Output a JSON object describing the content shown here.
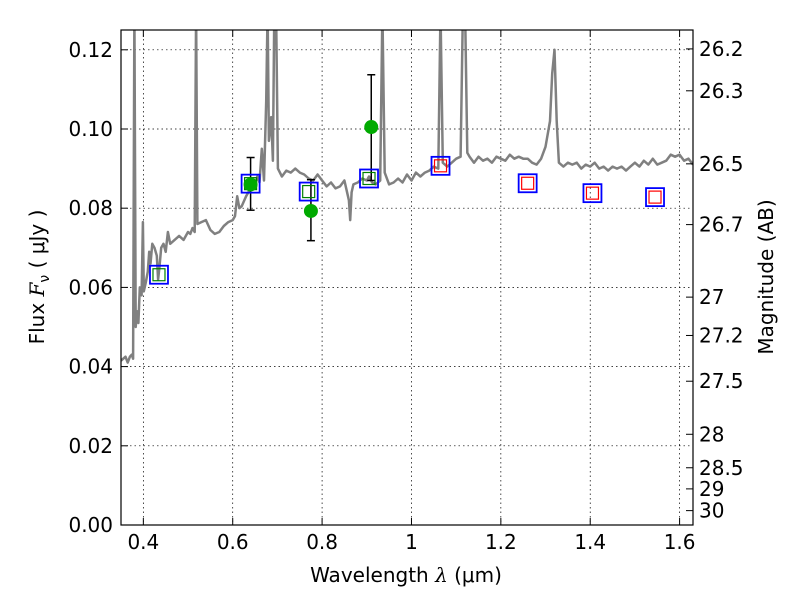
{
  "chart_data": {
    "type": "line",
    "xlabel": {
      "prefix": "Wavelength  ",
      "symbol": "λ",
      "units": " (μm)"
    },
    "ylabel": {
      "prefix": "Flux  ",
      "symbol": "F",
      "subscript": "ν",
      "units": "  ( μJy )"
    },
    "ylabel_right": "Magnitude (AB)",
    "xlim": [
      0.35,
      1.63
    ],
    "ylim": [
      0.0,
      0.125
    ],
    "grid": true,
    "x_ticks": [
      {
        "value": 0.4,
        "label": "0.4"
      },
      {
        "value": 0.6,
        "label": "0.6"
      },
      {
        "value": 0.8,
        "label": "0.8"
      },
      {
        "value": 1.0,
        "label": "1"
      },
      {
        "value": 1.2,
        "label": "1.2"
      },
      {
        "value": 1.4,
        "label": "1.4"
      },
      {
        "value": 1.6,
        "label": "1.6"
      }
    ],
    "y_ticks": [
      {
        "value": 0.0,
        "label": "0.00"
      },
      {
        "value": 0.02,
        "label": "0.02"
      },
      {
        "value": 0.04,
        "label": "0.04"
      },
      {
        "value": 0.06,
        "label": "0.06"
      },
      {
        "value": 0.08,
        "label": "0.08"
      },
      {
        "value": 0.1,
        "label": "0.10"
      },
      {
        "value": 0.12,
        "label": "0.12"
      }
    ],
    "right_ticks": [
      {
        "mag": 26.2,
        "label": "26.2"
      },
      {
        "mag": 26.3,
        "label": "26.3"
      },
      {
        "mag": 26.5,
        "label": "26.5"
      },
      {
        "mag": 26.7,
        "label": "26.7"
      },
      {
        "mag": 27.0,
        "label": "27"
      },
      {
        "mag": 27.2,
        "label": "27.2"
      },
      {
        "mag": 27.5,
        "label": "27.5"
      },
      {
        "mag": 28.0,
        "label": "28"
      },
      {
        "mag": 28.5,
        "label": "28.5"
      },
      {
        "mag": 29.0,
        "label": "29"
      },
      {
        "mag": 30.0,
        "label": "30"
      }
    ],
    "series": [
      {
        "kind": "model-spectrum",
        "color": "#808080",
        "points": [
          [
            0.35,
            0.0415
          ],
          [
            0.36,
            0.0425
          ],
          [
            0.365,
            0.041
          ],
          [
            0.37,
            0.0425
          ],
          [
            0.374,
            0.043
          ],
          [
            0.377,
            0.042
          ],
          [
            0.38,
            0.13
          ],
          [
            0.383,
            0.05
          ],
          [
            0.386,
            0.054
          ],
          [
            0.389,
            0.051
          ],
          [
            0.392,
            0.06
          ],
          [
            0.396,
            0.058
          ],
          [
            0.399,
            0.0765
          ],
          [
            0.401,
            0.059
          ],
          [
            0.405,
            0.061
          ],
          [
            0.41,
            0.064
          ],
          [
            0.413,
            0.069
          ],
          [
            0.416,
            0.066
          ],
          [
            0.42,
            0.071
          ],
          [
            0.425,
            0.07
          ],
          [
            0.43,
            0.068
          ],
          [
            0.433,
            0.062
          ],
          [
            0.436,
            0.065
          ],
          [
            0.44,
            0.07
          ],
          [
            0.445,
            0.071
          ],
          [
            0.45,
            0.069
          ],
          [
            0.455,
            0.074
          ],
          [
            0.46,
            0.071
          ],
          [
            0.47,
            0.072
          ],
          [
            0.48,
            0.073
          ],
          [
            0.49,
            0.072
          ],
          [
            0.5,
            0.074
          ],
          [
            0.505,
            0.0735
          ],
          [
            0.51,
            0.075
          ],
          [
            0.515,
            0.074
          ],
          [
            0.518,
            0.13
          ],
          [
            0.521,
            0.076
          ],
          [
            0.53,
            0.0765
          ],
          [
            0.54,
            0.077
          ],
          [
            0.55,
            0.0745
          ],
          [
            0.56,
            0.0735
          ],
          [
            0.57,
            0.074
          ],
          [
            0.58,
            0.0755
          ],
          [
            0.59,
            0.0765
          ],
          [
            0.6,
            0.077
          ],
          [
            0.605,
            0.078
          ],
          [
            0.61,
            0.083
          ],
          [
            0.615,
            0.08
          ],
          [
            0.62,
            0.0805
          ],
          [
            0.63,
            0.083
          ],
          [
            0.64,
            0.085
          ],
          [
            0.645,
            0.087
          ],
          [
            0.65,
            0.086
          ],
          [
            0.655,
            0.088
          ],
          [
            0.66,
            0.0865
          ],
          [
            0.665,
            0.095
          ],
          [
            0.67,
            0.087
          ],
          [
            0.675,
            0.107
          ],
          [
            0.678,
            0.13
          ],
          [
            0.681,
            0.097
          ],
          [
            0.686,
            0.103
          ],
          [
            0.69,
            0.092
          ],
          [
            0.693,
            0.13
          ],
          [
            0.697,
            0.13
          ],
          [
            0.701,
            0.09
          ],
          [
            0.71,
            0.088
          ],
          [
            0.72,
            0.0895
          ],
          [
            0.73,
            0.089
          ],
          [
            0.74,
            0.09
          ],
          [
            0.75,
            0.089
          ],
          [
            0.76,
            0.0885
          ],
          [
            0.77,
            0.0875
          ],
          [
            0.78,
            0.087
          ],
          [
            0.79,
            0.0885
          ],
          [
            0.8,
            0.087
          ],
          [
            0.81,
            0.0855
          ],
          [
            0.82,
            0.0865
          ],
          [
            0.83,
            0.085
          ],
          [
            0.84,
            0.0855
          ],
          [
            0.85,
            0.087
          ],
          [
            0.86,
            0.082
          ],
          [
            0.863,
            0.077
          ],
          [
            0.866,
            0.084
          ],
          [
            0.87,
            0.086
          ],
          [
            0.88,
            0.0865
          ],
          [
            0.89,
            0.0875
          ],
          [
            0.9,
            0.087
          ],
          [
            0.905,
            0.088
          ],
          [
            0.912,
            0.0865
          ],
          [
            0.92,
            0.086
          ],
          [
            0.93,
            0.087
          ],
          [
            0.935,
            0.13
          ],
          [
            0.94,
            0.089
          ],
          [
            0.95,
            0.086
          ],
          [
            0.96,
            0.0865
          ],
          [
            0.97,
            0.0875
          ],
          [
            0.98,
            0.0865
          ],
          [
            0.99,
            0.0885
          ],
          [
            1.0,
            0.087
          ],
          [
            1.01,
            0.089
          ],
          [
            1.02,
            0.088
          ],
          [
            1.03,
            0.089
          ],
          [
            1.04,
            0.0895
          ],
          [
            1.05,
            0.0905
          ],
          [
            1.06,
            0.09
          ],
          [
            1.065,
            0.13
          ],
          [
            1.07,
            0.0915
          ],
          [
            1.08,
            0.0905
          ],
          [
            1.09,
            0.0915
          ],
          [
            1.1,
            0.0925
          ],
          [
            1.11,
            0.093
          ],
          [
            1.115,
            0.13
          ],
          [
            1.12,
            0.13
          ],
          [
            1.125,
            0.094
          ],
          [
            1.13,
            0.093
          ],
          [
            1.14,
            0.0915
          ],
          [
            1.15,
            0.093
          ],
          [
            1.16,
            0.092
          ],
          [
            1.17,
            0.0925
          ],
          [
            1.18,
            0.0915
          ],
          [
            1.19,
            0.093
          ],
          [
            1.2,
            0.0925
          ],
          [
            1.21,
            0.092
          ],
          [
            1.22,
            0.0935
          ],
          [
            1.23,
            0.0925
          ],
          [
            1.24,
            0.093
          ],
          [
            1.25,
            0.0925
          ],
          [
            1.26,
            0.0925
          ],
          [
            1.27,
            0.0915
          ],
          [
            1.28,
            0.091
          ],
          [
            1.29,
            0.0925
          ],
          [
            1.3,
            0.0955
          ],
          [
            1.31,
            0.102
          ],
          [
            1.315,
            0.114
          ],
          [
            1.32,
            0.12
          ],
          [
            1.325,
            0.102
          ],
          [
            1.33,
            0.0915
          ],
          [
            1.34,
            0.0905
          ],
          [
            1.35,
            0.0915
          ],
          [
            1.36,
            0.091
          ],
          [
            1.37,
            0.0915
          ],
          [
            1.38,
            0.09
          ],
          [
            1.39,
            0.091
          ],
          [
            1.4,
            0.0905
          ],
          [
            1.41,
            0.0915
          ],
          [
            1.42,
            0.09
          ],
          [
            1.43,
            0.0905
          ],
          [
            1.44,
            0.0895
          ],
          [
            1.45,
            0.0905
          ],
          [
            1.46,
            0.09
          ],
          [
            1.47,
            0.0905
          ],
          [
            1.48,
            0.0895
          ],
          [
            1.49,
            0.0905
          ],
          [
            1.5,
            0.0915
          ],
          [
            1.51,
            0.0905
          ],
          [
            1.52,
            0.092
          ],
          [
            1.53,
            0.091
          ],
          [
            1.54,
            0.0925
          ],
          [
            1.55,
            0.091
          ],
          [
            1.56,
            0.0915
          ],
          [
            1.57,
            0.092
          ],
          [
            1.58,
            0.0935
          ],
          [
            1.59,
            0.093
          ],
          [
            1.6,
            0.0935
          ],
          [
            1.61,
            0.092
          ],
          [
            1.62,
            0.0925
          ],
          [
            1.63,
            0.091
          ]
        ]
      },
      {
        "kind": "blue-squares",
        "color": "#0000ff",
        "points": [
          [
            0.435,
            0.0632
          ],
          [
            0.64,
            0.0862
          ],
          [
            0.77,
            0.0842
          ],
          [
            0.905,
            0.0875
          ],
          [
            1.065,
            0.0907
          ],
          [
            1.26,
            0.0863
          ],
          [
            1.405,
            0.0838
          ],
          [
            1.545,
            0.0828
          ]
        ]
      },
      {
        "kind": "green-open-squares",
        "color": "#008000",
        "points": [
          [
            0.435,
            0.0632
          ],
          [
            0.64,
            0.0862
          ],
          [
            0.77,
            0.0842
          ],
          [
            0.905,
            0.0875
          ]
        ]
      },
      {
        "kind": "red-open-squares",
        "color": "#ff0000",
        "points": [
          [
            1.065,
            0.0907
          ],
          [
            1.26,
            0.0863
          ],
          [
            1.405,
            0.0838
          ],
          [
            1.545,
            0.0828
          ]
        ]
      },
      {
        "kind": "green-filled-circles",
        "color": "#00aa00",
        "points": [
          {
            "x": 0.64,
            "y": 0.086,
            "ylo": 0.0795,
            "yhi": 0.0928
          },
          {
            "x": 0.775,
            "y": 0.0793,
            "ylo": 0.0718,
            "yhi": 0.0872
          },
          {
            "x": 0.91,
            "y": 0.1005,
            "ylo": 0.087,
            "yhi": 0.1137
          }
        ]
      }
    ]
  }
}
